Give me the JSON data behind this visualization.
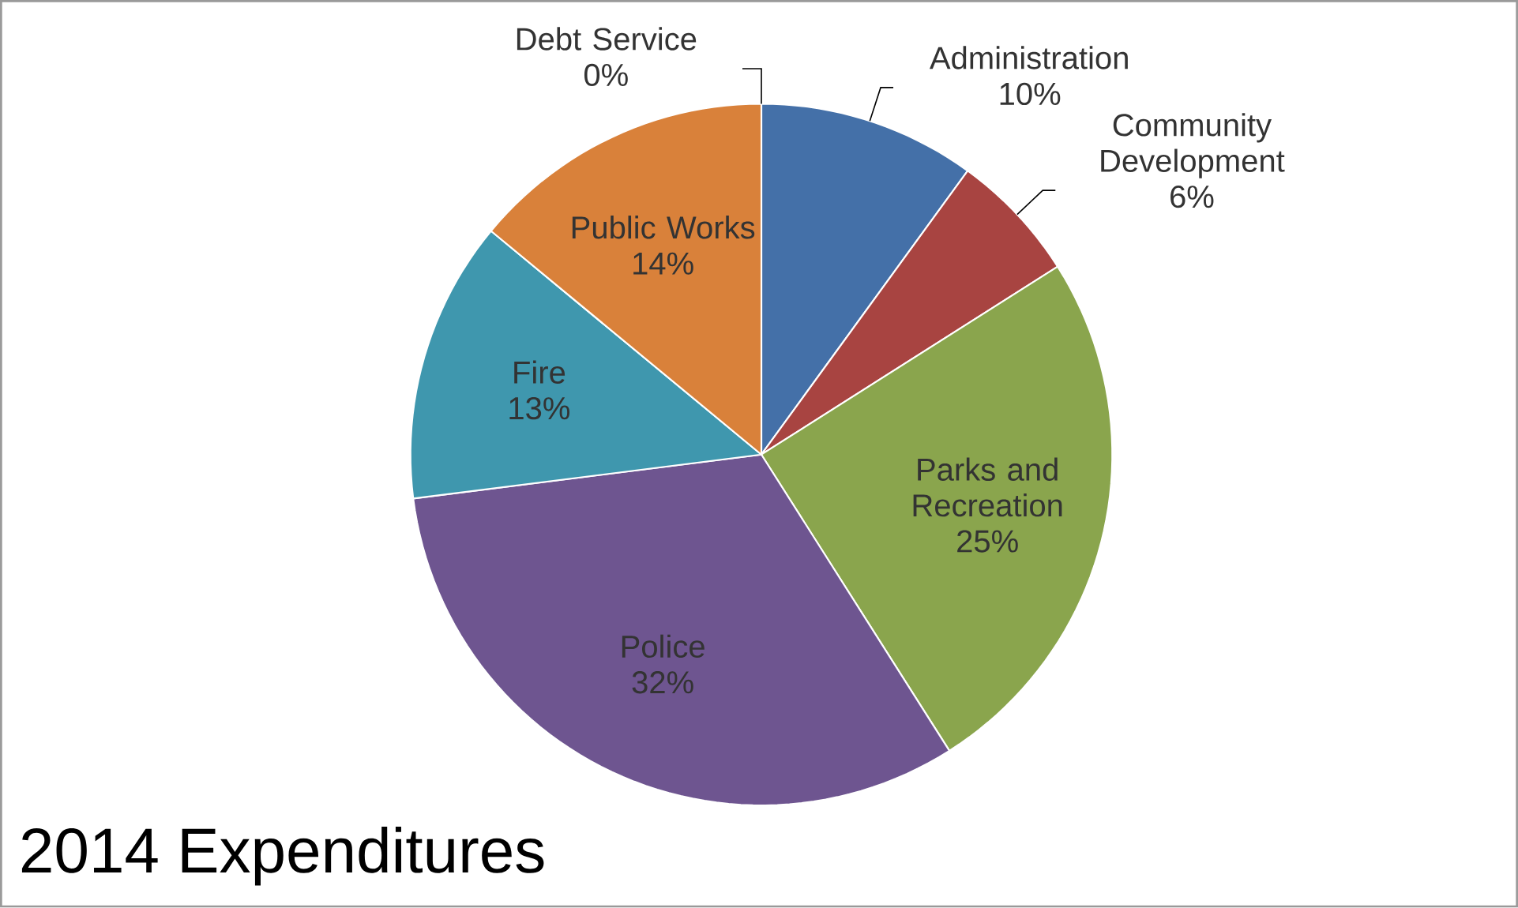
{
  "chart_data": {
    "type": "pie",
    "title": "2014 Expenditures",
    "categories": [
      "Administration",
      "Community Development",
      "Parks and Recreation",
      "Police",
      "Fire",
      "Public Works",
      "Debt Service"
    ],
    "values": [
      10,
      6,
      25,
      32,
      13,
      14,
      0
    ],
    "value_labels": [
      "10%",
      "6%",
      "25%",
      "32%",
      "13%",
      "14%",
      "0%"
    ],
    "colors": [
      "#4470a8",
      "#a84441",
      "#8aa54d",
      "#6e5590",
      "#3f97ae",
      "#d9813a",
      "#2c4d75"
    ]
  }
}
